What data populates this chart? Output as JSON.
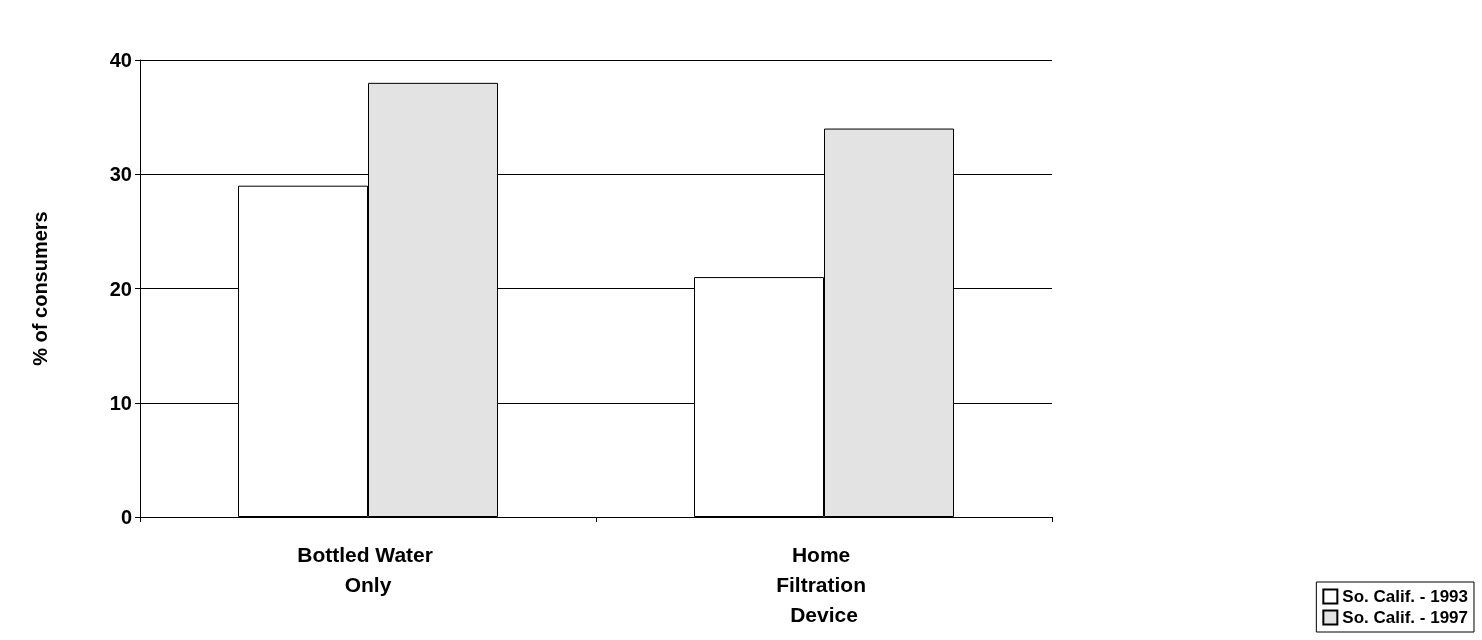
{
  "chart_data": {
    "type": "bar",
    "ylabel": "% of consumers",
    "categories": [
      "Bottled Water Only",
      "Home Filtration Device"
    ],
    "series": [
      {
        "name": "So. Calif. - 1993",
        "color": "#ffffff",
        "values": [
          29,
          21
        ]
      },
      {
        "name": "So. Calif. - 1997",
        "color": "#e3e3e3",
        "values": [
          38,
          34
        ]
      }
    ],
    "ylim": [
      0,
      40
    ],
    "yticks": [
      0,
      10,
      20,
      30,
      40
    ],
    "grid": "y",
    "legend": "bottom right"
  }
}
